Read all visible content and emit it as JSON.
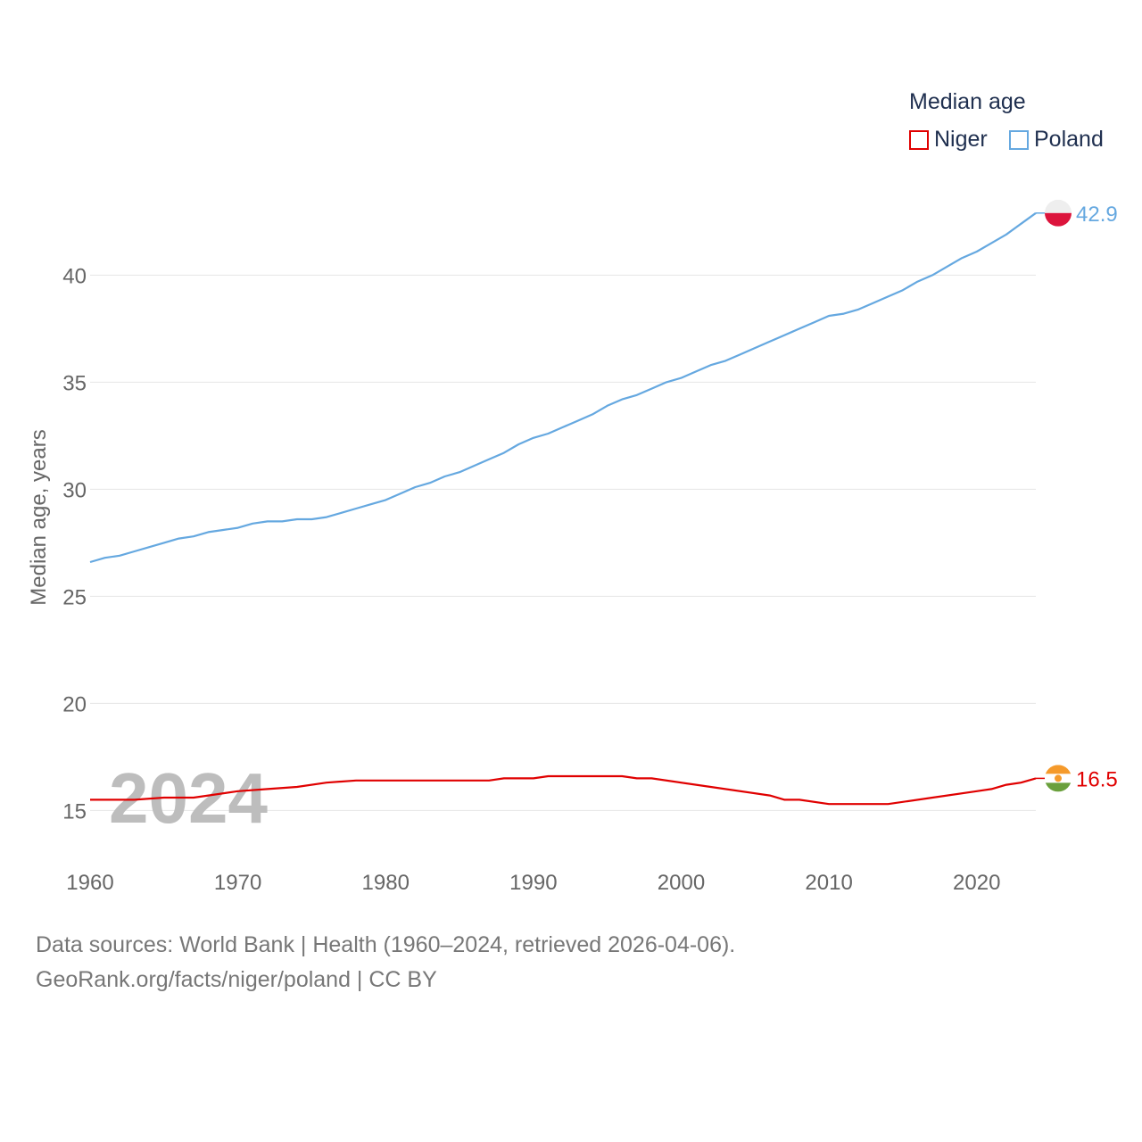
{
  "legend": {
    "title": "Median age",
    "items": [
      {
        "label": "Niger",
        "color": "#e00000"
      },
      {
        "label": "Poland",
        "color": "#65a8e0"
      }
    ]
  },
  "footer": {
    "line1": "Data sources: World Bank | Health (1960–2024, retrieved 2026-04-06).",
    "line2": "GeoRank.org/facts/niger/poland | CC BY"
  },
  "chart_data": {
    "type": "line",
    "title": "Median age",
    "xlabel": "",
    "ylabel": "Median age, years",
    "year_label": "2024",
    "xlim": [
      1960,
      2024
    ],
    "ylim": [
      13.6,
      43.6
    ],
    "x_ticks": [
      1960,
      1970,
      1980,
      1990,
      2000,
      2010,
      2020
    ],
    "y_ticks": [
      15,
      20,
      25,
      30,
      35,
      40
    ],
    "grid": true,
    "legend_position": "top-right",
    "series": [
      {
        "name": "Niger",
        "color": "#e00000",
        "end_label": "16.5",
        "points": [
          [
            1960,
            15.5
          ],
          [
            1963,
            15.5
          ],
          [
            1965,
            15.6
          ],
          [
            1967,
            15.6
          ],
          [
            1968,
            15.7
          ],
          [
            1970,
            15.9
          ],
          [
            1972,
            16.0
          ],
          [
            1974,
            16.1
          ],
          [
            1976,
            16.3
          ],
          [
            1978,
            16.4
          ],
          [
            1987,
            16.4
          ],
          [
            1988,
            16.5
          ],
          [
            1990,
            16.5
          ],
          [
            1991,
            16.6
          ],
          [
            1996,
            16.6
          ],
          [
            1997,
            16.5
          ],
          [
            1998,
            16.5
          ],
          [
            2002,
            16.1
          ],
          [
            2006,
            15.7
          ],
          [
            2007,
            15.5
          ],
          [
            2008,
            15.5
          ],
          [
            2010,
            15.3
          ],
          [
            2014,
            15.3
          ],
          [
            2017,
            15.6
          ],
          [
            2020,
            15.9
          ],
          [
            2021,
            16.0
          ],
          [
            2022,
            16.2
          ],
          [
            2023,
            16.3
          ],
          [
            2024,
            16.5
          ]
        ]
      },
      {
        "name": "Poland",
        "color": "#65a8e0",
        "end_label": "42.9",
        "points": [
          [
            1960,
            26.6
          ],
          [
            1961,
            26.8
          ],
          [
            1962,
            26.9
          ],
          [
            1963,
            27.1
          ],
          [
            1964,
            27.3
          ],
          [
            1965,
            27.5
          ],
          [
            1966,
            27.7
          ],
          [
            1967,
            27.8
          ],
          [
            1968,
            28.0
          ],
          [
            1969,
            28.1
          ],
          [
            1970,
            28.2
          ],
          [
            1971,
            28.4
          ],
          [
            1972,
            28.5
          ],
          [
            1973,
            28.5
          ],
          [
            1974,
            28.6
          ],
          [
            1975,
            28.6
          ],
          [
            1976,
            28.7
          ],
          [
            1977,
            28.9
          ],
          [
            1978,
            29.1
          ],
          [
            1979,
            29.3
          ],
          [
            1980,
            29.5
          ],
          [
            1981,
            29.8
          ],
          [
            1982,
            30.1
          ],
          [
            1983,
            30.3
          ],
          [
            1984,
            30.6
          ],
          [
            1985,
            30.8
          ],
          [
            1986,
            31.1
          ],
          [
            1987,
            31.4
          ],
          [
            1988,
            31.7
          ],
          [
            1989,
            32.1
          ],
          [
            1990,
            32.4
          ],
          [
            1991,
            32.6
          ],
          [
            1992,
            32.9
          ],
          [
            1993,
            33.2
          ],
          [
            1994,
            33.5
          ],
          [
            1995,
            33.9
          ],
          [
            1996,
            34.2
          ],
          [
            1997,
            34.4
          ],
          [
            1998,
            34.7
          ],
          [
            1999,
            35.0
          ],
          [
            2000,
            35.2
          ],
          [
            2001,
            35.5
          ],
          [
            2002,
            35.8
          ],
          [
            2003,
            36.0
          ],
          [
            2004,
            36.3
          ],
          [
            2005,
            36.6
          ],
          [
            2006,
            36.9
          ],
          [
            2007,
            37.2
          ],
          [
            2008,
            37.5
          ],
          [
            2009,
            37.8
          ],
          [
            2010,
            38.1
          ],
          [
            2011,
            38.2
          ],
          [
            2012,
            38.4
          ],
          [
            2013,
            38.7
          ],
          [
            2014,
            39.0
          ],
          [
            2015,
            39.3
          ],
          [
            2016,
            39.7
          ],
          [
            2017,
            40.0
          ],
          [
            2018,
            40.4
          ],
          [
            2019,
            40.8
          ],
          [
            2020,
            41.1
          ],
          [
            2021,
            41.5
          ],
          [
            2022,
            41.9
          ],
          [
            2023,
            42.4
          ],
          [
            2024,
            42.9
          ]
        ]
      }
    ]
  }
}
